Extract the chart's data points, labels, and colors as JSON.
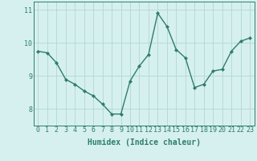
{
  "x": [
    0,
    1,
    2,
    3,
    4,
    5,
    6,
    7,
    8,
    9,
    10,
    11,
    12,
    13,
    14,
    15,
    16,
    17,
    18,
    19,
    20,
    21,
    22,
    23
  ],
  "y": [
    9.75,
    9.7,
    9.4,
    8.9,
    8.75,
    8.55,
    8.4,
    8.15,
    7.85,
    7.85,
    8.85,
    9.3,
    9.65,
    10.9,
    10.5,
    9.8,
    9.55,
    8.65,
    8.75,
    9.15,
    9.2,
    9.75,
    10.05,
    10.15
  ],
  "line_color": "#2e7d6e",
  "marker": "D",
  "marker_size": 2.0,
  "line_width": 1.0,
  "bg_color": "#d6f0ef",
  "grid_color": "#afd8d4",
  "tick_color": "#2e7d6e",
  "xlabel": "Humidex (Indice chaleur)",
  "xlabel_fontsize": 7,
  "tick_fontsize": 6,
  "ytick_fontsize": 6,
  "ylim": [
    7.5,
    11.25
  ],
  "yticks": [
    8,
    9,
    10,
    11
  ],
  "xlim": [
    -0.5,
    23.5
  ],
  "xticks": [
    0,
    1,
    2,
    3,
    4,
    5,
    6,
    7,
    8,
    9,
    10,
    11,
    12,
    13,
    14,
    15,
    16,
    17,
    18,
    19,
    20,
    21,
    22,
    23
  ]
}
